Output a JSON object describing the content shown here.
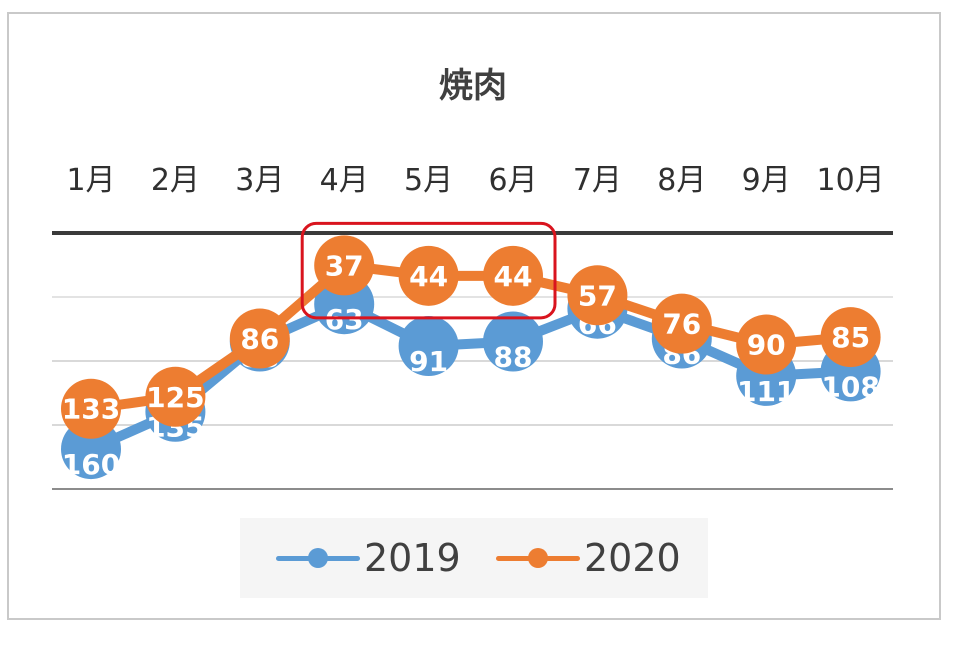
{
  "chart_data": {
    "type": "line",
    "title": "焼肉",
    "categories": [
      "1月",
      "2月",
      "3月",
      "4月",
      "5月",
      "6月",
      "7月",
      "8月",
      "9月",
      "10月"
    ],
    "series": [
      {
        "name": "2019",
        "values": [
          160,
          135,
          88,
          63,
          91,
          88,
          66,
          86,
          111,
          108
        ],
        "color": "#5b9bd5"
      },
      {
        "name": "2020",
        "values": [
          133,
          125,
          86,
          37,
          44,
          44,
          57,
          76,
          90,
          85
        ],
        "color": "#ed7d31"
      }
    ],
    "y_axis": {
      "reversed": true,
      "visible": false
    },
    "x_axis_position": "top",
    "gridlines": true,
    "legend": "bottom",
    "highlight": {
      "categories": [
        "4月",
        "5月",
        "6月"
      ],
      "series": "2020",
      "color": "#d9141e"
    }
  }
}
